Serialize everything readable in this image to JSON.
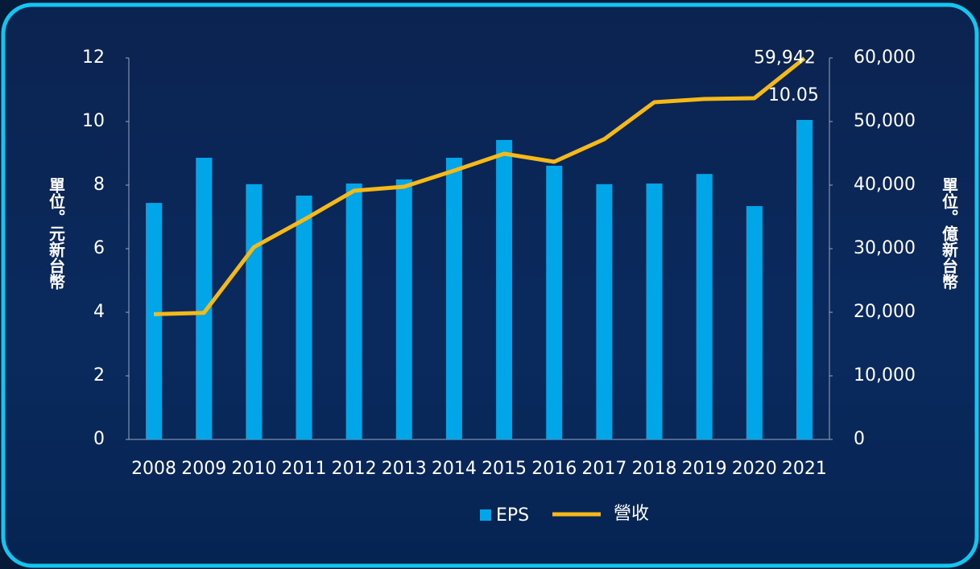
{
  "chart_data": {
    "type": "bar-line",
    "categories": [
      "2008",
      "2009",
      "2010",
      "2011",
      "2012",
      "2013",
      "2014",
      "2015",
      "2016",
      "2017",
      "2018",
      "2019",
      "2020",
      "2021"
    ],
    "y_label": "單位。元新台幣",
    "y2_label": "單位。億新台幣",
    "series": [
      {
        "name": "EPS",
        "type": "bar",
        "color": "#00a6e8",
        "values": [
          7.44,
          8.86,
          8.03,
          7.67,
          8.05,
          8.18,
          8.86,
          9.42,
          8.61,
          8.03,
          8.05,
          8.35,
          7.34,
          10.05
        ],
        "value_labels": [
          null,
          null,
          null,
          null,
          null,
          null,
          null,
          null,
          null,
          null,
          null,
          null,
          null,
          "10.05"
        ]
      },
      {
        "name": "營收",
        "type": "line",
        "axis": "y2",
        "color": "#f5b918",
        "values": [
          19700,
          19900,
          30250,
          34560,
          39110,
          39750,
          42280,
          44940,
          43670,
          47220,
          53040,
          53540,
          53670,
          59942
        ],
        "value_labels": [
          null,
          null,
          null,
          null,
          null,
          null,
          null,
          null,
          null,
          null,
          null,
          null,
          null,
          "59,942"
        ]
      }
    ],
    "ylim": [
      0,
      12
    ],
    "yticks": [
      0,
      2,
      4,
      6,
      8,
      10,
      12
    ],
    "y2lim": [
      0,
      60000
    ],
    "y2ticks": [
      0,
      {
        "value": 10000,
        "label": "10,000"
      },
      {
        "value": 20000,
        "label": "20,000"
      },
      {
        "value": 30000,
        "label": "30,000"
      },
      {
        "value": 40000,
        "label": "40,000"
      },
      {
        "value": 50000,
        "label": "50,000"
      },
      {
        "value": 60000,
        "label": "60,000"
      }
    ],
    "legend": "bottom"
  }
}
